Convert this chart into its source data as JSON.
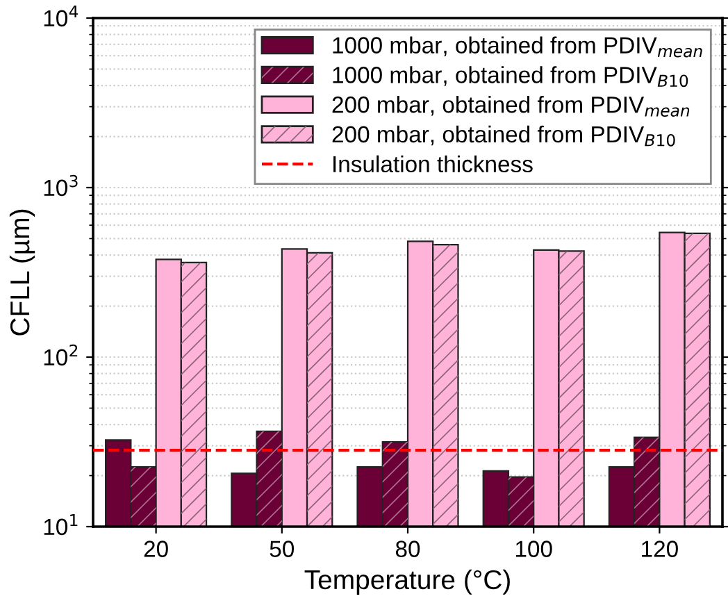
{
  "chart_data": {
    "type": "bar",
    "xlabel": "Temperature (°C)",
    "ylabel": "CFLL (µm)",
    "categories": [
      "20",
      "50",
      "80",
      "100",
      "120"
    ],
    "series": [
      {
        "name": "1000 mbar, obtained from PDIV$_{mean}$",
        "color": "#6b0036",
        "values": [
          32.4,
          20.6,
          22.5,
          21.3,
          22.5
        ]
      },
      {
        "name": "1000 mbar, obtained from PDIV$_{B10}$",
        "color": "#6b0036",
        "values": [
          22.5,
          36.5,
          31.6,
          19.6,
          33.6
        ]
      },
      {
        "name": "200 mbar, obtained from PDIV$_{mean}$",
        "color": "#ffb3d9",
        "values": [
          377,
          434,
          482,
          428,
          543
        ]
      },
      {
        "name": "200 mbar, obtained from PDIV$_{B10}$",
        "color": "#ffb3d9",
        "values": [
          361,
          412,
          461,
          422,
          537
        ]
      }
    ],
    "ref_lines": [
      {
        "axis": "y",
        "value": 28.2,
        "label": "Insulation thickness",
        "color": "#ff0000",
        "line_style": "dashed"
      }
    ],
    "log": "y",
    "ylim": [
      10,
      10000
    ],
    "yticks": [
      {
        "value": 10,
        "label": "10$^{1}$"
      },
      {
        "value": 100,
        "label": "10$^{2}$"
      },
      {
        "value": 1000,
        "label": "10$^{3}$"
      },
      {
        "value": 10000,
        "label": "10$^{4}$"
      }
    ],
    "grid": "y",
    "legend": "top right"
  }
}
